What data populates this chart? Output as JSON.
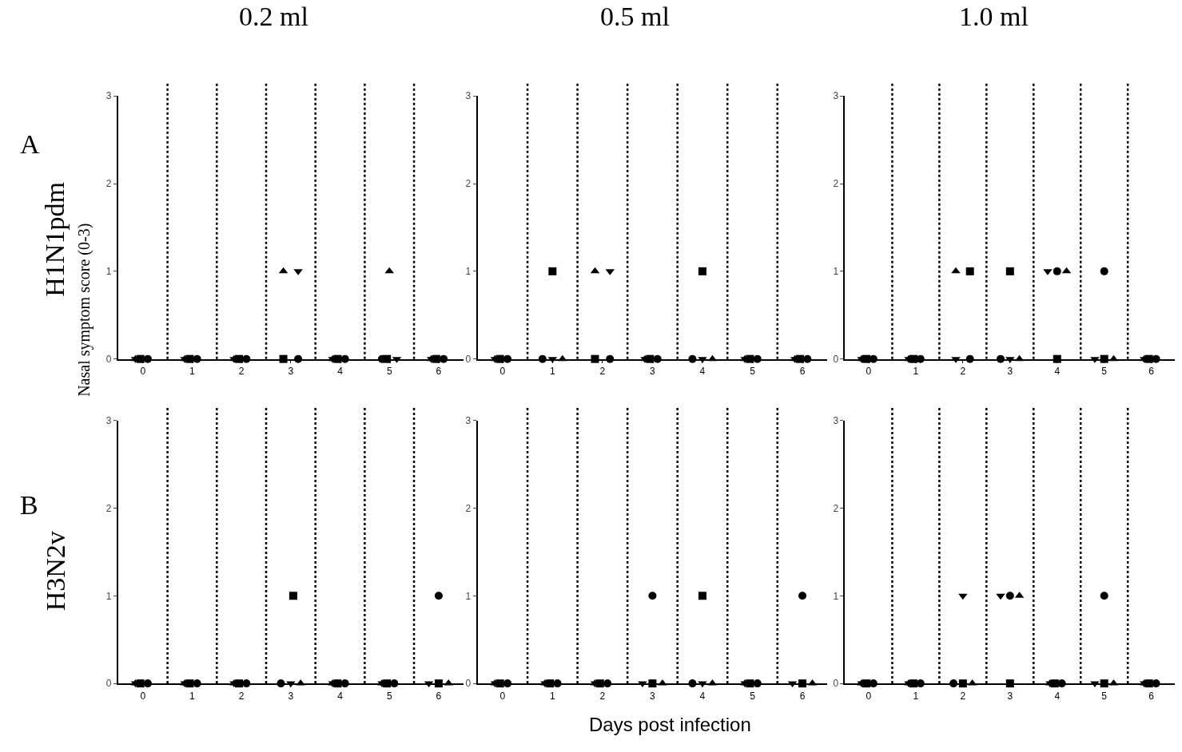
{
  "chart_data": [
    {
      "type": "scatter",
      "title": "0.2 ml",
      "ylabel": "Nasal symptom score (0-3)",
      "annotations": [
        "A",
        "H1N1pdm"
      ],
      "xlim": [
        -0.5,
        6.5
      ],
      "xticks": [
        0,
        1,
        2,
        3,
        4,
        5,
        6
      ],
      "ylim": [
        0,
        3
      ],
      "yticks": [
        0,
        1,
        2,
        3
      ],
      "ref_lines": [
        {
          "axis": "x",
          "value": 0.5,
          "line_style": "dotted"
        },
        {
          "axis": "x",
          "value": 1.5,
          "line_style": "dotted"
        },
        {
          "axis": "x",
          "value": 2.5,
          "line_style": "dotted"
        },
        {
          "axis": "x",
          "value": 3.5,
          "line_style": "dotted"
        },
        {
          "axis": "x",
          "value": 4.5,
          "line_style": "dotted"
        },
        {
          "axis": "x",
          "value": 5.5,
          "line_style": "dotted"
        }
      ],
      "series": [
        {
          "marker": "square",
          "color": "#000000",
          "x": [
            -0.05,
            0.95,
            1.95,
            2.85,
            3.95,
            4.95,
            5.95
          ],
          "values": [
            0,
            0,
            0,
            0,
            0,
            0,
            0
          ]
        },
        {
          "marker": "triangle",
          "color": "#000000",
          "x": [
            -0.15,
            0.85,
            1.85,
            2.85,
            3.85,
            5.0,
            5.85
          ],
          "values": [
            0,
            0,
            0,
            1,
            0,
            1,
            0
          ]
        },
        {
          "marker": "triangle-down",
          "color": "#000000",
          "x": [
            -0.15,
            0.85,
            1.85,
            3.15,
            3.85,
            5.15,
            5.85
          ],
          "values": [
            0,
            0,
            0,
            1,
            0,
            0,
            0
          ]
        },
        {
          "marker": "circle",
          "color": "#000000",
          "x": [
            0.1,
            1.1,
            2.1,
            3.15,
            4.1,
            4.85,
            6.1
          ],
          "values": [
            0,
            0,
            0,
            0,
            0,
            0,
            0
          ]
        }
      ]
    },
    {
      "type": "scatter",
      "title": "0.5 ml",
      "xlim": [
        -0.5,
        6.5
      ],
      "xticks": [
        0,
        1,
        2,
        3,
        4,
        5,
        6
      ],
      "ylim": [
        0,
        3
      ],
      "yticks": [
        0,
        1,
        2,
        3
      ],
      "ref_lines": [
        {
          "axis": "x",
          "value": 0.5,
          "line_style": "dotted"
        },
        {
          "axis": "x",
          "value": 1.5,
          "line_style": "dotted"
        },
        {
          "axis": "x",
          "value": 2.5,
          "line_style": "dotted"
        },
        {
          "axis": "x",
          "value": 3.5,
          "line_style": "dotted"
        },
        {
          "axis": "x",
          "value": 4.5,
          "line_style": "dotted"
        },
        {
          "axis": "x",
          "value": 5.5,
          "line_style": "dotted"
        }
      ],
      "series": [
        {
          "marker": "square",
          "color": "#000000",
          "x": [
            -0.05,
            1.0,
            1.85,
            2.95,
            4.0,
            4.95,
            5.95
          ],
          "values": [
            0,
            1,
            0,
            0,
            1,
            0,
            0
          ]
        },
        {
          "marker": "triangle",
          "color": "#000000",
          "x": [
            -0.15,
            1.2,
            1.85,
            2.85,
            4.2,
            4.85,
            5.85
          ],
          "values": [
            0,
            0,
            1,
            0,
            0,
            0,
            0
          ]
        },
        {
          "marker": "triangle-down",
          "color": "#000000",
          "x": [
            -0.15,
            1.0,
            2.15,
            2.85,
            4.0,
            4.85,
            5.85
          ],
          "values": [
            0,
            0,
            1,
            0,
            0,
            0,
            0
          ]
        },
        {
          "marker": "circle",
          "color": "#000000",
          "x": [
            0.1,
            0.8,
            2.15,
            3.1,
            3.8,
            5.1,
            6.1
          ],
          "values": [
            0,
            0,
            0,
            0,
            0,
            0,
            0
          ]
        }
      ]
    },
    {
      "type": "scatter",
      "title": "1.0 ml",
      "xlim": [
        -0.5,
        6.5
      ],
      "xticks": [
        0,
        1,
        2,
        3,
        4,
        5,
        6
      ],
      "ylim": [
        0,
        3
      ],
      "yticks": [
        0,
        1,
        2,
        3
      ],
      "ref_lines": [
        {
          "axis": "x",
          "value": 0.5,
          "line_style": "dotted"
        },
        {
          "axis": "x",
          "value": 1.5,
          "line_style": "dotted"
        },
        {
          "axis": "x",
          "value": 2.5,
          "line_style": "dotted"
        },
        {
          "axis": "x",
          "value": 3.5,
          "line_style": "dotted"
        },
        {
          "axis": "x",
          "value": 4.5,
          "line_style": "dotted"
        },
        {
          "axis": "x",
          "value": 5.5,
          "line_style": "dotted"
        }
      ],
      "series": [
        {
          "marker": "square",
          "color": "#000000",
          "x": [
            -0.05,
            0.95,
            2.15,
            3.0,
            4.0,
            5.0,
            5.95
          ],
          "values": [
            0,
            0,
            1,
            1,
            0,
            0,
            0
          ]
        },
        {
          "marker": "triangle",
          "color": "#000000",
          "x": [
            -0.15,
            0.85,
            1.85,
            3.2,
            4.2,
            5.2,
            5.85
          ],
          "values": [
            0,
            0,
            1,
            0,
            1,
            0,
            0
          ]
        },
        {
          "marker": "triangle-down",
          "color": "#000000",
          "x": [
            -0.15,
            0.85,
            1.85,
            3.0,
            3.8,
            4.8,
            5.85
          ],
          "values": [
            0,
            0,
            0,
            0,
            1,
            0,
            0
          ]
        },
        {
          "marker": "circle",
          "color": "#000000",
          "x": [
            0.1,
            1.1,
            2.15,
            2.8,
            4.0,
            5.0,
            6.1
          ],
          "values": [
            0,
            0,
            0,
            0,
            1,
            1,
            0
          ]
        }
      ]
    },
    {
      "type": "scatter",
      "annotations": [
        "B",
        "H3N2v"
      ],
      "xlim": [
        -0.5,
        6.5
      ],
      "xticks": [
        0,
        1,
        2,
        3,
        4,
        5,
        6
      ],
      "ylim": [
        0,
        3
      ],
      "yticks": [
        0,
        1,
        2,
        3
      ],
      "ref_lines": [
        {
          "axis": "x",
          "value": 0.5,
          "line_style": "dotted"
        },
        {
          "axis": "x",
          "value": 1.5,
          "line_style": "dotted"
        },
        {
          "axis": "x",
          "value": 2.5,
          "line_style": "dotted"
        },
        {
          "axis": "x",
          "value": 3.5,
          "line_style": "dotted"
        },
        {
          "axis": "x",
          "value": 4.5,
          "line_style": "dotted"
        },
        {
          "axis": "x",
          "value": 5.5,
          "line_style": "dotted"
        }
      ],
      "series": [
        {
          "marker": "square",
          "color": "#000000",
          "x": [
            -0.05,
            0.95,
            1.95,
            3.05,
            3.95,
            4.95,
            6.0
          ],
          "values": [
            0,
            0,
            0,
            1,
            0,
            0,
            0
          ]
        },
        {
          "marker": "triangle",
          "color": "#000000",
          "x": [
            -0.15,
            0.85,
            1.85,
            3.2,
            3.85,
            4.85,
            6.2
          ],
          "values": [
            0,
            0,
            0,
            0,
            0,
            0,
            0
          ]
        },
        {
          "marker": "triangle-down",
          "color": "#000000",
          "x": [
            -0.15,
            0.85,
            1.85,
            3.0,
            3.85,
            4.85,
            5.8
          ],
          "values": [
            0,
            0,
            0,
            0,
            0,
            0,
            0
          ]
        },
        {
          "marker": "circle",
          "color": "#000000",
          "x": [
            0.1,
            1.1,
            2.1,
            2.8,
            4.1,
            5.1,
            6.0
          ],
          "values": [
            0,
            0,
            0,
            0,
            0,
            0,
            1
          ]
        }
      ]
    },
    {
      "type": "scatter",
      "xlabel": "Days post infection",
      "xlim": [
        -0.5,
        6.5
      ],
      "xticks": [
        0,
        1,
        2,
        3,
        4,
        5,
        6
      ],
      "ylim": [
        0,
        3
      ],
      "yticks": [
        0,
        1,
        2,
        3
      ],
      "ref_lines": [
        {
          "axis": "x",
          "value": 0.5,
          "line_style": "dotted"
        },
        {
          "axis": "x",
          "value": 1.5,
          "line_style": "dotted"
        },
        {
          "axis": "x",
          "value": 2.5,
          "line_style": "dotted"
        },
        {
          "axis": "x",
          "value": 3.5,
          "line_style": "dotted"
        },
        {
          "axis": "x",
          "value": 4.5,
          "line_style": "dotted"
        },
        {
          "axis": "x",
          "value": 5.5,
          "line_style": "dotted"
        }
      ],
      "series": [
        {
          "marker": "square",
          "color": "#000000",
          "x": [
            -0.05,
            0.95,
            1.95,
            3.0,
            4.0,
            4.95,
            6.0
          ],
          "values": [
            0,
            0,
            0,
            0,
            1,
            0,
            0
          ]
        },
        {
          "marker": "triangle",
          "color": "#000000",
          "x": [
            -0.15,
            0.85,
            1.85,
            3.2,
            4.2,
            4.85,
            6.2
          ],
          "values": [
            0,
            0,
            0,
            0,
            0,
            0,
            0
          ]
        },
        {
          "marker": "triangle-down",
          "color": "#000000",
          "x": [
            -0.15,
            0.85,
            1.85,
            2.8,
            4.0,
            4.85,
            5.8
          ],
          "values": [
            0,
            0,
            0,
            0,
            0,
            0,
            0
          ]
        },
        {
          "marker": "circle",
          "color": "#000000",
          "x": [
            0.1,
            1.1,
            2.1,
            3.0,
            3.8,
            5.1,
            6.0
          ],
          "values": [
            0,
            0,
            0,
            1,
            0,
            0,
            1
          ]
        }
      ]
    },
    {
      "type": "scatter",
      "xlim": [
        -0.5,
        6.5
      ],
      "xticks": [
        0,
        1,
        2,
        3,
        4,
        5,
        6
      ],
      "ylim": [
        0,
        3
      ],
      "yticks": [
        0,
        1,
        2,
        3
      ],
      "ref_lines": [
        {
          "axis": "x",
          "value": 0.5,
          "line_style": "dotted"
        },
        {
          "axis": "x",
          "value": 1.5,
          "line_style": "dotted"
        },
        {
          "axis": "x",
          "value": 2.5,
          "line_style": "dotted"
        },
        {
          "axis": "x",
          "value": 3.5,
          "line_style": "dotted"
        },
        {
          "axis": "x",
          "value": 4.5,
          "line_style": "dotted"
        },
        {
          "axis": "x",
          "value": 5.5,
          "line_style": "dotted"
        }
      ],
      "series": [
        {
          "marker": "square",
          "color": "#000000",
          "x": [
            -0.05,
            0.95,
            2.0,
            3.0,
            3.95,
            5.0,
            5.95
          ],
          "values": [
            0,
            0,
            0,
            0,
            0,
            0,
            0
          ]
        },
        {
          "marker": "triangle",
          "color": "#000000",
          "x": [
            -0.15,
            0.85,
            2.2,
            3.2,
            3.85,
            5.2,
            5.85
          ],
          "values": [
            0,
            0,
            0,
            1,
            0,
            0,
            0
          ]
        },
        {
          "marker": "triangle-down",
          "color": "#000000",
          "x": [
            -0.15,
            0.85,
            2.0,
            2.8,
            3.85,
            4.8,
            5.85
          ],
          "values": [
            0,
            0,
            1,
            1,
            0,
            0,
            0
          ]
        },
        {
          "marker": "circle",
          "color": "#000000",
          "x": [
            0.1,
            1.1,
            1.8,
            3.0,
            4.1,
            5.0,
            6.1
          ],
          "values": [
            0,
            0,
            0,
            1,
            0,
            1,
            0
          ]
        }
      ]
    }
  ]
}
